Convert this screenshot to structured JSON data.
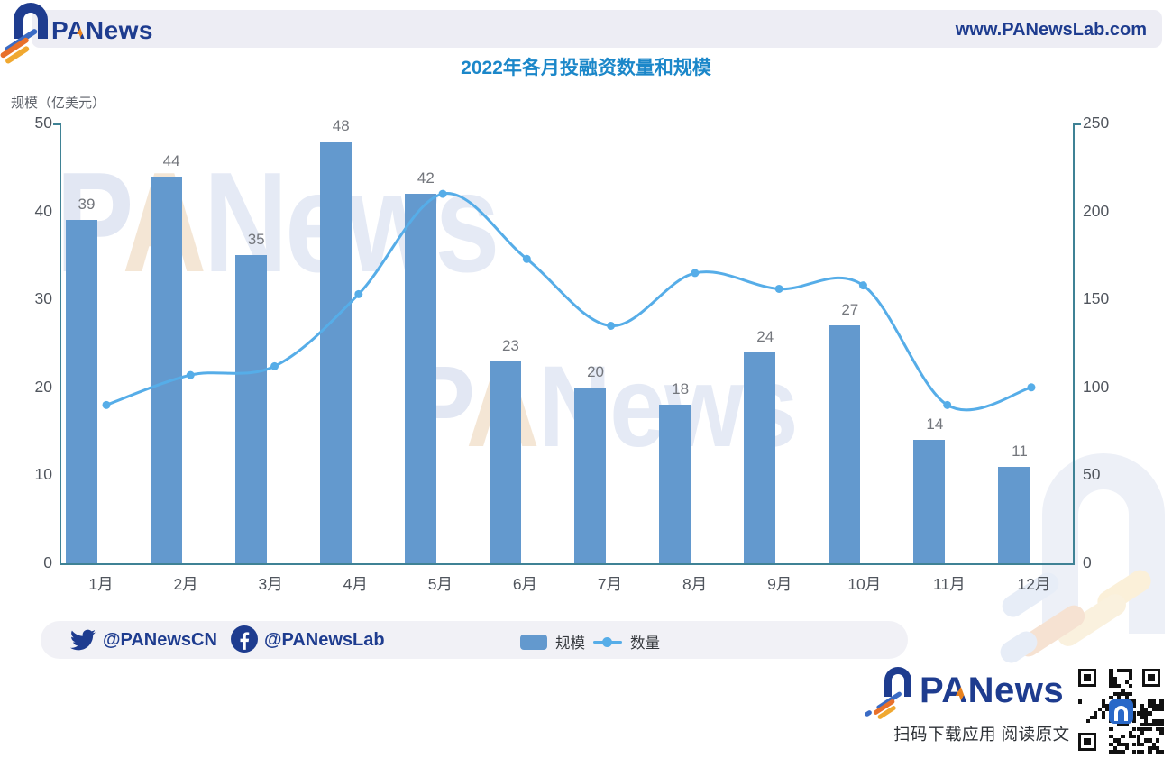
{
  "header": {
    "brand": {
      "p": "P",
      "a": "A",
      "rest": "News"
    },
    "url": "www.PANewsLab.com"
  },
  "chart_data": {
    "type": "bar+line",
    "title": "2022年各月投融资数量和规模",
    "categories": [
      "1月",
      "2月",
      "3月",
      "4月",
      "5月",
      "6月",
      "7月",
      "8月",
      "9月",
      "10月",
      "11月",
      "12月"
    ],
    "series": [
      {
        "name": "规模",
        "type": "bar",
        "axis": "left",
        "color": "#6399CE",
        "values": [
          39,
          44,
          35,
          48,
          42,
          23,
          20,
          18,
          24,
          27,
          14,
          11
        ]
      },
      {
        "name": "数量",
        "type": "line",
        "axis": "right",
        "color": "#56ADE8",
        "values": [
          90,
          107,
          112,
          153,
          210,
          173,
          135,
          165,
          156,
          158,
          90,
          100
        ]
      }
    ],
    "left_axis": {
      "title": "规模（亿美元）",
      "ticks": [
        0,
        10,
        20,
        30,
        40,
        50
      ],
      "min": 0,
      "max": 50
    },
    "right_axis": {
      "title": "",
      "ticks": [
        0,
        50,
        100,
        150,
        200,
        250
      ],
      "min": 0,
      "max": 250
    },
    "value_labels_series": "规模",
    "legend_position": "bottom",
    "grid": false
  },
  "footer": {
    "twitter_handle": "@PANewsCN",
    "facebook_handle": "@PANewsLab"
  },
  "promo": {
    "brand": {
      "p": "P",
      "a": "A",
      "rest": "News"
    },
    "caption": "扫码下载应用 阅读原文"
  },
  "watermark": {
    "p": "P",
    "a": "A",
    "rest": "News"
  },
  "colors": {
    "bar": "#6399CE",
    "line": "#56ADE8",
    "axis": "#3F8295",
    "title": "#1B87C9",
    "brand_navy": "#1E3C8F",
    "brand_orange": "#E8821E",
    "brand_gold": "#F0A830",
    "header_band": "#EDEDF4",
    "footer_band": "#F1F1F6",
    "tick_text": "#50555D",
    "value_label": "#73767C"
  }
}
